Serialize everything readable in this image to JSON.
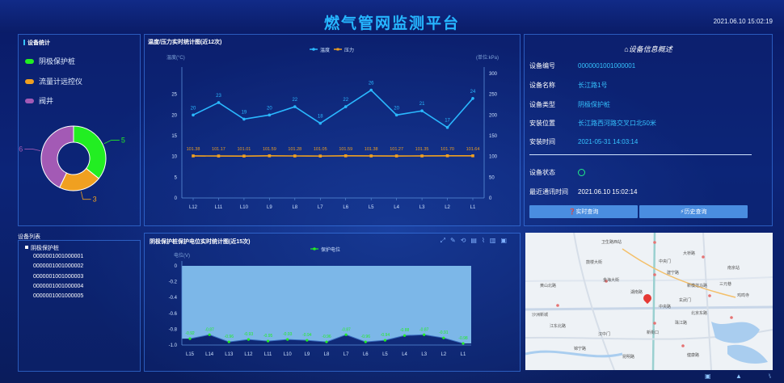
{
  "header": {
    "title": "燃气管网监测平台",
    "datetime": "2021.06.10   15:02:19"
  },
  "device_stats": {
    "title": "设备统计",
    "legend": [
      {
        "label": "阴极保护桩",
        "color": "#22ee22"
      },
      {
        "label": "流量计远控仪",
        "color": "#f0a020"
      },
      {
        "label": "阀井",
        "color": "#a35ab5"
      }
    ],
    "donut": {
      "values": [
        5,
        3,
        6
      ],
      "labels": [
        "5",
        "3",
        "6"
      ],
      "colors": [
        "#22ee22",
        "#f0a020",
        "#a35ab5"
      ]
    }
  },
  "temp_chart": {
    "title": "温度/压力实时统计图(近12次)",
    "legend": [
      "温度",
      "压力"
    ],
    "left_unit": "温度(°C)",
    "right_unit": "(单位:kPa)"
  },
  "device_info": {
    "title": "设备信息概述",
    "rows": [
      {
        "label": "设备编号",
        "value": "0000001001000001"
      },
      {
        "label": "设备名称",
        "value": "长江路1号"
      },
      {
        "label": "设备类型",
        "value": "阴极保护桩"
      },
      {
        "label": "安装位置",
        "value": "长江路西河路交叉口北50米"
      },
      {
        "label": "安装时间",
        "value": "2021-05-31 14:03:14"
      }
    ],
    "status_label": "设备状态",
    "comm_label": "最近通讯时间",
    "comm_value": "2021.06.10   15:02:14",
    "btn_realtime": "❓实时查询",
    "btn_history": "⚡历史查询"
  },
  "device_list": {
    "title": "设备列表",
    "group": "阴极保护桩",
    "items": [
      "0000001001000001",
      "0000001001000002",
      "0000001001000003",
      "0000001001000004",
      "0000001001000005"
    ]
  },
  "volt_chart": {
    "title": "阴极保护桩保护电位实时统计图(近15次)",
    "legend": "保护电位",
    "unit": "电位(V)"
  },
  "map": {
    "labels": [
      "卫生路西站",
      "鼓楼大街",
      "金海大街",
      "黄山北路",
      "沙洲新城",
      "江东北路",
      "中央门",
      "大桥路",
      "建宁路",
      "新模范马路",
      "湖南路",
      "南京站",
      "三元巷",
      "鸡鸣寺",
      "玄武门",
      "中央路",
      "北京东路",
      "珠江路",
      "新街口",
      "汉中门",
      "锦宁路",
      "昆明路",
      "健康路"
    ]
  },
  "chart_data": [
    {
      "type": "line",
      "title": "温度/压力实时统计图(近12次)",
      "categories": [
        "L12",
        "L11",
        "L10",
        "L9",
        "L8",
        "L7",
        "L6",
        "L5",
        "L4",
        "L3",
        "L2",
        "L1"
      ],
      "series": [
        {
          "name": "温度",
          "axis": "left",
          "color": "#2ab8ff",
          "values": [
            20,
            23,
            19,
            20,
            22,
            18,
            22,
            26,
            20,
            21,
            17,
            24
          ]
        },
        {
          "name": "压力",
          "axis": "right",
          "color": "#f0a020",
          "values": [
            101.38,
            101.17,
            101.01,
            101.59,
            101.28,
            101.05,
            101.59,
            101.38,
            101.27,
            101.35,
            101.7,
            101.64
          ]
        }
      ],
      "ylim_left": [
        0,
        30
      ],
      "yticks_left": [
        0,
        5,
        10,
        15,
        20,
        25
      ],
      "ylim_right": [
        0,
        300
      ],
      "yticks_right": [
        0,
        50,
        100,
        150,
        200,
        250,
        300
      ],
      "left_labels": [
        "20",
        "23",
        "19",
        "20",
        "22",
        "18",
        "22",
        "26",
        "20",
        "21",
        "17",
        "24"
      ],
      "right_labels": [
        "101.38",
        "101.17",
        "101.01",
        "101.59",
        "101.28",
        "101.05",
        "101.59",
        "101.38",
        "101.27",
        "101.35",
        "101.70",
        "101.64"
      ]
    },
    {
      "type": "area",
      "title": "阴极保护桩保护电位实时统计图(近15次)",
      "categories": [
        "L15",
        "L14",
        "L13",
        "L12",
        "L11",
        "L10",
        "L9",
        "L8",
        "L7",
        "L6",
        "L5",
        "L4",
        "L3",
        "L2",
        "L1"
      ],
      "series": [
        {
          "name": "保护电位",
          "color": "#22ee22",
          "values": [
            -0.92,
            -0.87,
            -0.96,
            -0.93,
            -0.95,
            -0.93,
            -0.94,
            -0.96,
            -0.87,
            -0.96,
            -0.94,
            -0.88,
            -0.87,
            -0.91,
            -0.98
          ]
        }
      ],
      "labels": [
        "-0.92",
        "-0.87",
        "-0.96",
        "-0.93",
        "-0.95",
        "-0.93",
        "-0.94",
        "-0.96",
        "-0.87",
        "-0.96",
        "-0.94",
        "-0.88",
        "-0.87",
        "-0.91",
        "-0.98"
      ],
      "ylim": [
        -1.0,
        0
      ],
      "yticks": [
        0,
        -0.2,
        -0.4,
        -0.6,
        -0.8,
        -1.0
      ],
      "ytick_labels": [
        "0",
        "-0.2",
        "-0.4",
        "-0.6",
        "-0.8",
        "-1.0"
      ]
    }
  ]
}
